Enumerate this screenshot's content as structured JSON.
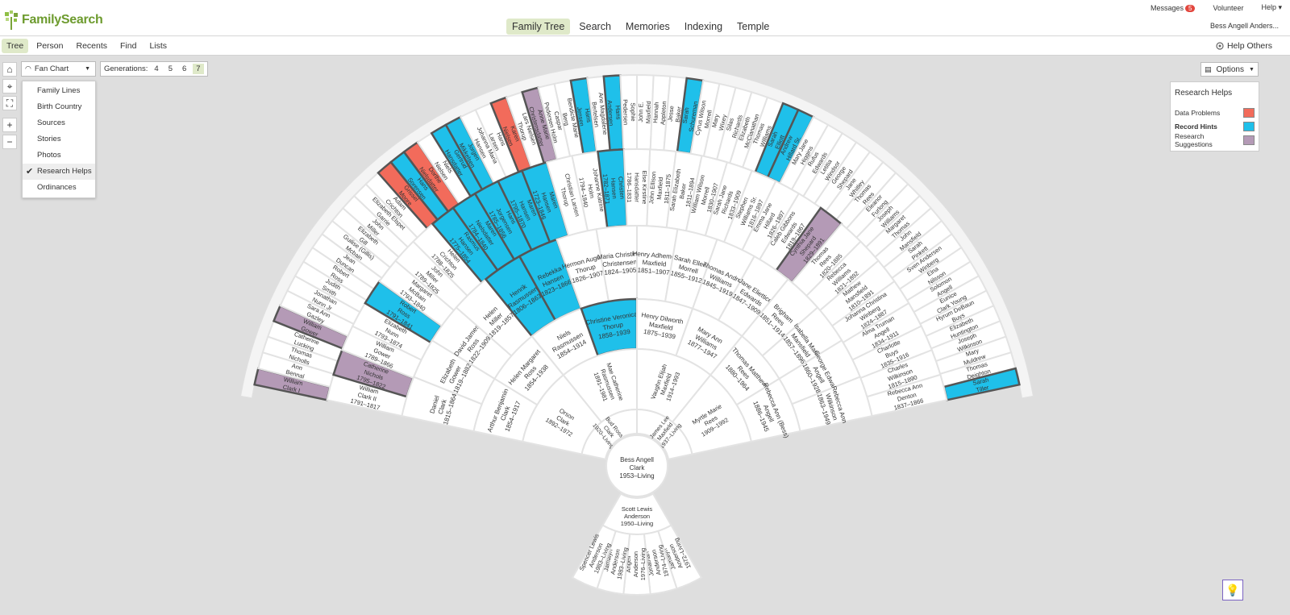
{
  "app": {
    "brand": "FamilySearch"
  },
  "main_nav": [
    {
      "label": "Family Tree",
      "active": true
    },
    {
      "label": "Search",
      "active": false
    },
    {
      "label": "Memories",
      "active": false
    },
    {
      "label": "Indexing",
      "active": false
    },
    {
      "label": "Temple",
      "active": false
    }
  ],
  "utility": {
    "messages_label": "Messages",
    "messages_count": "5",
    "volunteer_label": "Volunteer",
    "help_label": "Help ▾",
    "user_name": "Bess Angell Anders..."
  },
  "sub_nav": [
    {
      "label": "Tree",
      "active": true
    },
    {
      "label": "Person",
      "active": false
    },
    {
      "label": "Recents",
      "active": false
    },
    {
      "label": "Find",
      "active": false
    },
    {
      "label": "Lists",
      "active": false
    }
  ],
  "help_others": "Help Others",
  "chart_select": {
    "label": "Fan Chart"
  },
  "generations": {
    "label": "Generations:",
    "options": [
      "4",
      "5",
      "6",
      "7"
    ],
    "selected": "7"
  },
  "view_menu": [
    {
      "label": "Family Lines",
      "checked": false
    },
    {
      "label": "Birth Country",
      "checked": false
    },
    {
      "label": "Sources",
      "checked": false
    },
    {
      "label": "Stories",
      "checked": false
    },
    {
      "label": "Photos",
      "checked": false
    },
    {
      "label": "Research Helps",
      "checked": true
    },
    {
      "label": "Ordinances",
      "checked": false
    }
  ],
  "options_label": "Options",
  "legend": {
    "title": "Research Helps",
    "items": [
      {
        "label": "Data Problems",
        "color": "#f26b5b",
        "bold": false
      },
      {
        "label": "Record Hints",
        "color": "#1fc0ea",
        "bold": true
      },
      {
        "label": "Research Suggestions",
        "color": "#b49ab6",
        "bold": false
      }
    ]
  },
  "colors": {
    "record_hint": "#1fc0ea",
    "data_problem": "#f26b5b",
    "research_suggestion": "#b49ab6",
    "cell": "#ffffff",
    "ring_border": "#e6e6e6",
    "accent_nav": "#dfe9c9"
  },
  "fan": {
    "root": {
      "name": [
        "Bess Angell",
        "Clark"
      ],
      "dates": "1953–Living"
    },
    "descendants": {
      "spouse": {
        "name": [
          "Scott Lewis",
          "Anderson"
        ],
        "dates": "1950–Living"
      },
      "children": [
        {
          "name": [
            "Jamalyn",
            "Anderson"
          ],
          "dates": "1972–Living"
        },
        {
          "name": [
            "Jonathan",
            "Anderson"
          ],
          "dates": "1974–Living"
        },
        {
          "name": [
            "Angell",
            "Anderson"
          ],
          "dates": "1976–Living"
        },
        {
          "name": [
            "Jamalyn",
            "Anderson"
          ],
          "dates": "1983–Living"
        },
        {
          "name": [
            "Spencer Lewis",
            "Anderson"
          ],
          "dates": "1983–Living"
        }
      ]
    },
    "g1": [
      {
        "name": [
          "Bud Ross",
          "Clark"
        ],
        "dates": "1920–Living",
        "status": ""
      },
      {
        "name": [
          "James Lee",
          "Maxfield"
        ],
        "dates": "1937–Living",
        "status": ""
      }
    ],
    "g2": [
      {
        "name": [
          "Orson",
          "Clark"
        ],
        "dates": "1892–1972",
        "status": ""
      },
      {
        "name": [
          "Mae Catherine",
          "Rasmussen"
        ],
        "dates": "1891–1981",
        "status": ""
      },
      {
        "name": [
          "Vaughn Elijah",
          "Maxfield"
        ],
        "dates": "1914–1993",
        "status": ""
      },
      {
        "name": [
          "Myrtle Marie",
          "Rees"
        ],
        "dates": "1909–1992",
        "status": ""
      }
    ],
    "g3": [
      {
        "name": [
          "Arthur Benjamin",
          "Clark"
        ],
        "dates": "1854–1917",
        "status": ""
      },
      {
        "name": [
          "Helen Margaret",
          "Ross"
        ],
        "dates": "1854–1938",
        "status": ""
      },
      {
        "name": [
          "Niels",
          "Rasmussen"
        ],
        "dates": "1854–1914",
        "status": ""
      },
      {
        "name": [
          "Christine Veronica",
          "Thorup"
        ],
        "dates": "1858–1939",
        "status": "hint"
      },
      {
        "name": [
          "Henry Dilworth",
          "Maxfield"
        ],
        "dates": "1875–1939",
        "status": ""
      },
      {
        "name": [
          "Mary Ann",
          "Williams"
        ],
        "dates": "1877–1947",
        "status": ""
      },
      {
        "name": [
          "Thomas Matthew",
          "Rees"
        ],
        "dates": "1880–1964",
        "status": ""
      },
      {
        "name": [
          "Rebecca Ann (Bess)",
          "Angell"
        ],
        "dates": "1886–1945",
        "status": ""
      }
    ],
    "g4": [
      {
        "name": [
          "Daniel",
          "Clark"
        ],
        "dates": "1815–1864",
        "status": ""
      },
      {
        "name": [
          "Elizabeth",
          "Gower"
        ],
        "dates": "1819–1882",
        "status": ""
      },
      {
        "name": [
          "David James",
          "Ross"
        ],
        "dates": "1822–1909",
        "status": ""
      },
      {
        "name": [
          "Helen",
          "Miller"
        ],
        "dates": "1819–1857",
        "status": ""
      },
      {
        "name": [
          "Henrik",
          "Rasmussen"
        ],
        "dates": "1806–1863",
        "status": "hint"
      },
      {
        "name": [
          "Rebekka",
          "Hansen"
        ],
        "dates": "1823–1866",
        "status": "hint"
      },
      {
        "name": [
          "Hermon August",
          "Thorup"
        ],
        "dates": "1826–1907",
        "status": ""
      },
      {
        "name": [
          "Maria Christine",
          "Christensen"
        ],
        "dates": "1824–1905",
        "status": ""
      },
      {
        "name": [
          "Henry Adhemer",
          "Maxfield"
        ],
        "dates": "1851–1907",
        "status": ""
      },
      {
        "name": [
          "Sarah Ellen",
          "Morrell"
        ],
        "dates": "1855–1912",
        "status": ""
      },
      {
        "name": [
          "Thomas Andrew",
          "Williams"
        ],
        "dates": "1845–1919",
        "status": ""
      },
      {
        "name": [
          "Jane Eliettice",
          "Edwards"
        ],
        "dates": "1847–1909",
        "status": ""
      },
      {
        "name": [
          "Brigham",
          "Rees"
        ],
        "dates": "1851–1914",
        "status": ""
      },
      {
        "name": [
          "Isabella Maria",
          "Mansfield"
        ],
        "dates": "1857–1896",
        "status": ""
      },
      {
        "name": [
          "George Edward",
          "Angell"
        ],
        "dates": "1860–1928",
        "status": ""
      },
      {
        "name": [
          "Rebecca Ann",
          "Wilkinson"
        ],
        "dates": "1863–1949",
        "status": ""
      }
    ],
    "g5": [
      {
        "name": [
          "William",
          "Clark II"
        ],
        "dates": "1791–1817",
        "status": ""
      },
      {
        "name": [
          "Catherine",
          "Nichols"
        ],
        "dates": "1795–1822",
        "status": "suggestion"
      },
      {
        "name": [
          "William",
          "Gower"
        ],
        "dates": "1789–1866",
        "status": ""
      },
      {
        "name": [
          "Elizabeth",
          "Nunn"
        ],
        "dates": "1793–1874",
        "status": ""
      },
      {
        "name": [
          "Robert",
          "Ross"
        ],
        "dates": "1791–1841",
        "status": "hint"
      },
      {
        "name": [
          "Margaret",
          "McBain"
        ],
        "dates": "1793–1840",
        "status": ""
      },
      {
        "name": [
          "John",
          "Miller"
        ],
        "dates": "1789–1825",
        "status": ""
      },
      {
        "name": [
          "Helen",
          "Crichton"
        ],
        "dates": "1788–1825",
        "status": ""
      },
      {
        "name": [
          "Rasmus",
          "Hansen"
        ],
        "dates": "1775–1854",
        "status": "hint"
      },
      {
        "name": [
          "Maren",
          "Nielsdatter"
        ],
        "dates": "1784–1840",
        "status": "hint"
      },
      {
        "name": [
          "Hans",
          "Jorgensen"
        ],
        "dates": "1785–1856",
        "status": "hint"
      },
      {
        "name": [
          "Maren",
          "Hansen"
        ],
        "dates": "1795–1870",
        "status": "hint"
      },
      {
        "name": [
          "Maren",
          "Hansen"
        ],
        "dates": "1723–1846",
        "status": "hint"
      },
      {
        "name": [
          "Christian Larsen",
          "Thorup"
        ],
        "dates": "",
        "status": ""
      },
      {
        "name": [
          "Johanne Katrine",
          "Holm"
        ],
        "dates": "1794–1840",
        "status": ""
      },
      {
        "name": [
          "Christen",
          "Hansen"
        ],
        "dates": "1782–1871",
        "status": "hint"
      },
      {
        "name": [
          "Else Kirstine",
          "Hansdatter"
        ],
        "dates": "1786–1831",
        "status": ""
      },
      {
        "name": [
          "John Ellison",
          "Maxfield"
        ],
        "dates": "1811–1875",
        "status": ""
      },
      {
        "name": [
          "Sarah Elizabeth",
          "Baker"
        ],
        "dates": "1811–1894",
        "status": ""
      },
      {
        "name": [
          "William Wilson",
          "Morrell"
        ],
        "dates": "1830–1907",
        "status": ""
      },
      {
        "name": [
          "Sarah Jane",
          "Richards"
        ],
        "dates": "1833–1909",
        "status": ""
      },
      {
        "name": [
          "Stephen",
          "Williams Sr."
        ],
        "dates": "1816–1897",
        "status": ""
      },
      {
        "name": [
          "Emma Jane",
          "Hillard"
        ],
        "dates": "1826–1897",
        "status": ""
      },
      {
        "name": [
          "Caleb Gibbons",
          "Edwards"
        ],
        "dates": "1819–1867",
        "status": ""
      },
      {
        "name": [
          "Cynthia Jane",
          "Shepard"
        ],
        "dates": "1829–1891",
        "status": "suggestion"
      },
      {
        "name": [
          "Thomas",
          "Rees"
        ],
        "dates": "1820–1885",
        "status": ""
      },
      {
        "name": [
          "Rebecca",
          "Williams"
        ],
        "dates": "1821–1892",
        "status": ""
      },
      {
        "name": [
          "Mathew",
          "Mansfield"
        ],
        "dates": "1810–1891",
        "status": ""
      },
      {
        "name": [
          "Johanna Christina",
          "Winberg"
        ],
        "dates": "1824–1887",
        "status": ""
      },
      {
        "name": [
          "Alma Truman",
          "Angell"
        ],
        "dates": "1834–1911",
        "status": ""
      },
      {
        "name": [
          "Charlotte",
          "Buys"
        ],
        "dates": "1835–1916",
        "status": ""
      },
      {
        "name": [
          "Charles",
          "Wilkinson"
        ],
        "dates": "1815–1890",
        "status": ""
      },
      {
        "name": [
          "Rebecca Ann",
          "Denton"
        ],
        "dates": "1837–1866",
        "status": ""
      }
    ],
    "g6": [
      {
        "name": [
          "William",
          "Clark I"
        ],
        "status": "suggestion"
      },
      {
        "name": [
          "Ann",
          "Bennal"
        ],
        "status": ""
      },
      {
        "name": [
          "Thomas",
          "Nicholls"
        ],
        "status": ""
      },
      {
        "name": [
          "Catherine",
          "Lucking"
        ],
        "status": ""
      },
      {
        "name": [
          "William",
          "Gower"
        ],
        "status": "suggestion"
      },
      {
        "name": [
          "Sara Ann",
          "Gazley"
        ],
        "status": ""
      },
      {
        "name": [
          "Jonathan",
          "Nunn Jr"
        ],
        "status": ""
      },
      {
        "name": [
          "Judith",
          "Smith"
        ],
        "status": ""
      },
      {
        "name": [
          "Robert",
          "Ross"
        ],
        "status": ""
      },
      {
        "name": [
          "Jean",
          "Duncan"
        ],
        "status": ""
      },
      {
        "name": [
          "Guilise (Gillis)",
          "Mcbain"
        ],
        "status": ""
      },
      {
        "name": [
          "Elizabeth",
          "Gill"
        ],
        "status": ""
      },
      {
        "name": [
          "John",
          "Miller"
        ],
        "status": ""
      },
      {
        "name": [
          "Elizabeth Elspet",
          "Garrie"
        ],
        "status": ""
      },
      {
        "name": [
          "Adam",
          "Crichton"
        ],
        "status": ""
      },
      {
        "name": [
          "Grissel",
          "Moore"
        ],
        "status": "problem"
      },
      {
        "name": [
          "Hans",
          "Sorensen"
        ],
        "status": "hint"
      },
      {
        "name": [
          "Dorthe",
          "Nielsdatter"
        ],
        "status": "problem"
      },
      {
        "name": [
          "Niels",
          "Nielsen"
        ],
        "status": ""
      },
      {
        "name": [
          "Gertrud",
          "Hansdatter"
        ],
        "status": "hint"
      },
      {
        "name": [
          "Jorgen",
          "Mikkelsen"
        ],
        "status": "hint"
      },
      {
        "name": [
          "Johanna Maria",
          "Hansen"
        ],
        "status": ""
      },
      {
        "name": [
          "Hans",
          "Larsen"
        ],
        "status": ""
      },
      {
        "name": [
          "Karen",
          "Nielsen"
        ],
        "status": "problem"
      },
      {
        "name": [
          "Lars Nielsen",
          "Thorup"
        ],
        "status": ""
      },
      {
        "name": [
          "Anne Marie",
          "Christensdatter"
        ],
        "status": "suggestion"
      },
      {
        "name": [
          "Caspar",
          "Pedersen Holm"
        ],
        "status": ""
      },
      {
        "name": [
          "Bendicte Marie",
          "Berg"
        ],
        "status": ""
      },
      {
        "name": [
          "Hans",
          "Jensen"
        ],
        "status": "hint"
      },
      {
        "name": [
          "Ane Magdalene",
          "Bertelsen"
        ],
        "status": ""
      },
      {
        "name": [
          "Hans",
          "Andersen"
        ],
        "status": "hint"
      },
      {
        "name": [
          "Sophie",
          "Pedersen"
        ],
        "status": ""
      },
      {
        "name": [
          "John E.",
          "Maxfield"
        ],
        "status": ""
      },
      {
        "name": [
          "Hannah",
          "Appleton"
        ],
        "status": ""
      },
      {
        "name": [
          "Jesse",
          "Baker"
        ],
        "status": ""
      },
      {
        "name": [
          "Sarah",
          "Schureman"
        ],
        "status": "hint"
      },
      {
        "name": [
          "Cyrus Wilson",
          "Morrell"
        ],
        "status": ""
      },
      {
        "name": [
          "Mary",
          "Wixey"
        ],
        "status": ""
      },
      {
        "name": [
          "Silas",
          "Richards"
        ],
        "status": ""
      },
      {
        "name": [
          "Elizabeth",
          "McClanathan"
        ],
        "status": ""
      },
      {
        "name": [
          "Thomas",
          "Williams"
        ],
        "status": ""
      },
      {
        "name": [
          "Sarah",
          "Elliott"
        ],
        "status": "hint"
      },
      {
        "name": [
          "Andrew",
          "Hillard Sr."
        ],
        "status": "hint"
      },
      {
        "name": [
          "Mary Jane",
          "Higgins"
        ],
        "status": ""
      },
      {
        "name": [
          "Rufus",
          "Edwards"
        ],
        "status": ""
      },
      {
        "name": [
          "Letitia",
          "Windsor"
        ],
        "status": ""
      },
      {
        "name": [
          "George",
          "Shepard"
        ],
        "status": ""
      },
      {
        "name": [
          "Jane",
          "Whitley"
        ],
        "status": ""
      },
      {
        "name": [
          "Thomas",
          "Rees"
        ],
        "status": ""
      },
      {
        "name": [
          "Eleanor",
          "Furlong"
        ],
        "status": ""
      },
      {
        "name": [
          "Joseph",
          "Williams"
        ],
        "status": ""
      },
      {
        "name": [
          "Margaret",
          "Thomas"
        ],
        "status": ""
      },
      {
        "name": [
          "John",
          "Mansfield"
        ],
        "status": ""
      },
      {
        "name": [
          "Sarah",
          "Pinkett"
        ],
        "status": ""
      },
      {
        "name": [
          "Sven Andersen",
          "Winberg"
        ],
        "status": ""
      },
      {
        "name": [
          "Elna",
          "Nilsson"
        ],
        "status": ""
      },
      {
        "name": [
          "Solomon",
          "Angell"
        ],
        "status": ""
      },
      {
        "name": [
          "Eunice",
          "Clark Young"
        ],
        "status": ""
      },
      {
        "name": [
          "Hyrum DeBaun",
          "Buys"
        ],
        "status": ""
      },
      {
        "name": [
          "Elizabeth",
          "Huntington"
        ],
        "status": ""
      },
      {
        "name": [
          "Joseph",
          "Wilkinson"
        ],
        "status": ""
      },
      {
        "name": [
          "Mary",
          "Muldrew"
        ],
        "status": ""
      },
      {
        "name": [
          "Thomas",
          "Deighton"
        ],
        "status": ""
      },
      {
        "name": [
          "Sarah",
          "Tiller"
        ],
        "status": "hint"
      }
    ]
  }
}
